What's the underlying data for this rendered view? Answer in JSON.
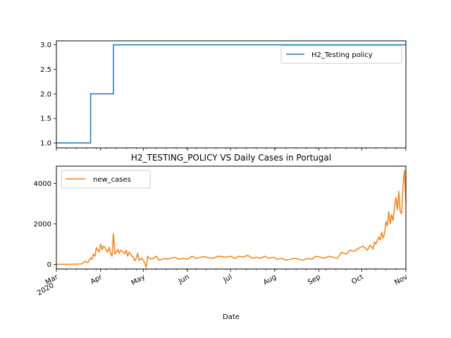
{
  "chart_data": [
    {
      "type": "line",
      "title": "",
      "xlabel": "",
      "ylabel": "",
      "ylim": [
        0.9,
        3.08
      ],
      "yticks": [
        "1.0",
        "1.5",
        "2.0",
        "2.5",
        "3.0"
      ],
      "legend_position": "upper right",
      "grid": false,
      "series": [
        {
          "name": "H2_Testing policy",
          "color": "#1f77b4",
          "step": true,
          "x": [
            "2020-03-01",
            "2020-03-25",
            "2020-04-10",
            "2020-11-01"
          ],
          "y": [
            1,
            2,
            3,
            3
          ]
        }
      ]
    },
    {
      "type": "line",
      "title": "H2_TESTING_POLICY VS Daily Cases in Portugal",
      "xlabel": "Date",
      "ylabel": "",
      "ylim": [
        -230,
        4850
      ],
      "yticks": [
        "0",
        "2000",
        "4000"
      ],
      "xticks": [
        {
          "date": "2020-03-01",
          "label": "Mar",
          "sublabel": "2020"
        },
        {
          "date": "2020-04-01",
          "label": "Apr",
          "sublabel": ""
        },
        {
          "date": "2020-05-01",
          "label": "May",
          "sublabel": ""
        },
        {
          "date": "2020-06-01",
          "label": "Jun",
          "sublabel": ""
        },
        {
          "date": "2020-07-01",
          "label": "Jul",
          "sublabel": ""
        },
        {
          "date": "2020-08-01",
          "label": "Aug",
          "sublabel": ""
        },
        {
          "date": "2020-09-01",
          "label": "Sep",
          "sublabel": ""
        },
        {
          "date": "2020-10-01",
          "label": "Oct",
          "sublabel": ""
        },
        {
          "date": "2020-11-01",
          "label": "Nov",
          "sublabel": ""
        }
      ],
      "legend_position": "upper left",
      "grid": false,
      "series": [
        {
          "name": "new_cases",
          "color": "#ff7f0e",
          "x": [
            "2020-03-01",
            "2020-03-10",
            "2020-03-15",
            "2020-03-19",
            "2020-03-21",
            "2020-03-23",
            "2020-03-25",
            "2020-03-26",
            "2020-03-27",
            "2020-03-28",
            "2020-03-29",
            "2020-03-31",
            "2020-04-01",
            "2020-04-02",
            "2020-04-03",
            "2020-04-04",
            "2020-04-05",
            "2020-04-06",
            "2020-04-07",
            "2020-04-08",
            "2020-04-09",
            "2020-04-10",
            "2020-04-11",
            "2020-04-12",
            "2020-04-13",
            "2020-04-14",
            "2020-04-15",
            "2020-04-16",
            "2020-04-17",
            "2020-04-18",
            "2020-04-19",
            "2020-04-20",
            "2020-04-21",
            "2020-04-22",
            "2020-04-23",
            "2020-04-24",
            "2020-04-25",
            "2020-04-26",
            "2020-04-27",
            "2020-04-28",
            "2020-04-30",
            "2020-05-02",
            "2020-05-03",
            "2020-05-04",
            "2020-05-06",
            "2020-05-08",
            "2020-05-10",
            "2020-05-12",
            "2020-05-14",
            "2020-05-16",
            "2020-05-18",
            "2020-05-20",
            "2020-05-23",
            "2020-05-26",
            "2020-05-29",
            "2020-06-01",
            "2020-06-04",
            "2020-06-07",
            "2020-06-10",
            "2020-06-13",
            "2020-06-16",
            "2020-06-19",
            "2020-06-22",
            "2020-06-25",
            "2020-06-28",
            "2020-07-01",
            "2020-07-04",
            "2020-07-07",
            "2020-07-10",
            "2020-07-13",
            "2020-07-16",
            "2020-07-19",
            "2020-07-22",
            "2020-07-25",
            "2020-07-28",
            "2020-07-31",
            "2020-08-03",
            "2020-08-06",
            "2020-08-09",
            "2020-08-12",
            "2020-08-15",
            "2020-08-18",
            "2020-08-21",
            "2020-08-24",
            "2020-08-27",
            "2020-08-30",
            "2020-09-02",
            "2020-09-05",
            "2020-09-08",
            "2020-09-11",
            "2020-09-14",
            "2020-09-17",
            "2020-09-20",
            "2020-09-23",
            "2020-09-26",
            "2020-09-29",
            "2020-10-02",
            "2020-10-05",
            "2020-10-07",
            "2020-10-09",
            "2020-10-10",
            "2020-10-11",
            "2020-10-13",
            "2020-10-14",
            "2020-10-15",
            "2020-10-16",
            "2020-10-17",
            "2020-10-18",
            "2020-10-19",
            "2020-10-20",
            "2020-10-21",
            "2020-10-22",
            "2020-10-23",
            "2020-10-24",
            "2020-10-25",
            "2020-10-26",
            "2020-10-27",
            "2020-10-28",
            "2020-10-29",
            "2020-10-30",
            "2020-10-31",
            "2020-11-01"
          ],
          "y": [
            0,
            0,
            10,
            20,
            150,
            80,
            320,
            250,
            500,
            400,
            820,
            600,
            1000,
            720,
            900,
            850,
            700,
            600,
            850,
            550,
            400,
            1520,
            500,
            600,
            750,
            550,
            700,
            650,
            600,
            520,
            700,
            400,
            600,
            520,
            400,
            350,
            180,
            300,
            550,
            200,
            300,
            60,
            -150,
            400,
            250,
            300,
            400,
            200,
            250,
            300,
            250,
            300,
            350,
            250,
            300,
            250,
            400,
            300,
            350,
            380,
            320,
            300,
            400,
            380,
            350,
            400,
            300,
            400,
            350,
            450,
            300,
            350,
            300,
            400,
            300,
            350,
            250,
            300,
            200,
            250,
            300,
            250,
            200,
            300,
            250,
            400,
            350,
            300,
            400,
            350,
            300,
            600,
            500,
            700,
            650,
            800,
            900,
            700,
            950,
            750,
            1100,
            1000,
            1350,
            1200,
            1600,
            1300,
            1500,
            2100,
            1900,
            2600,
            2000,
            2450,
            2150,
            2850,
            3300,
            2700,
            3600,
            2600,
            2500,
            3900,
            4650,
            3050
          ]
        }
      ]
    }
  ]
}
